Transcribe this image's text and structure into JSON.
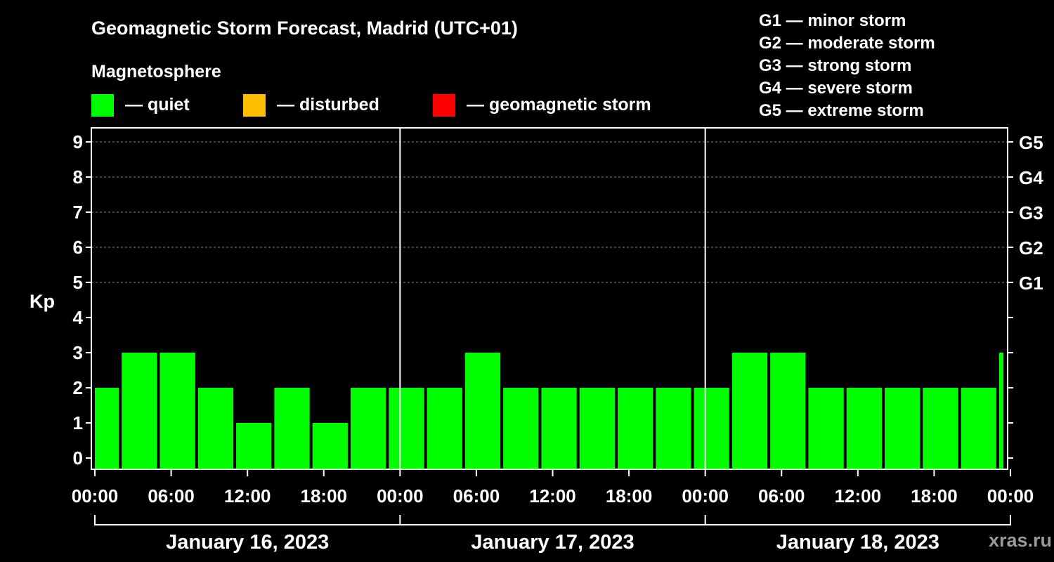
{
  "chart_data": {
    "type": "bar",
    "title": "Geomagnetic Storm Forecast, Madrid (UTC+01)",
    "ylabel": "Kp",
    "ylim": [
      0,
      9
    ],
    "y_ticks": [
      "0",
      "1",
      "2",
      "3",
      "4",
      "5",
      "6",
      "7",
      "8",
      "9"
    ],
    "right_axis_labels": [
      {
        "kp": 5,
        "label": "G1"
      },
      {
        "kp": 6,
        "label": "G2"
      },
      {
        "kp": 7,
        "label": "G3"
      },
      {
        "kp": 8,
        "label": "G4"
      },
      {
        "kp": 9,
        "label": "G5"
      }
    ],
    "x_tick_labels": [
      "00:00",
      "06:00",
      "12:00",
      "18:00",
      "00:00",
      "06:00",
      "12:00",
      "18:00",
      "00:00",
      "06:00",
      "12:00",
      "18:00",
      "00:00"
    ],
    "days": [
      "January 16, 2023",
      "January 17, 2023",
      "January 18, 2023"
    ],
    "interval_hours": 3,
    "period_start_offset_hours": -1,
    "values": [
      2,
      3,
      3,
      2,
      1,
      2,
      1,
      2,
      2,
      2,
      3,
      2,
      2,
      2,
      2,
      2,
      2,
      3,
      3,
      2,
      2,
      2,
      2,
      2,
      3
    ],
    "status_colors": {
      "quiet": "#00ff00",
      "disturbed": "#ffbf00",
      "storm": "#ff0000"
    }
  },
  "legend": {
    "section_title": "Magnetosphere",
    "items": [
      {
        "label": "— quiet",
        "color": "#00ff00"
      },
      {
        "label": "— disturbed",
        "color": "#ffbf00"
      },
      {
        "label": "— geomagnetic storm",
        "color": "#ff0000"
      }
    ]
  },
  "storm_scale": [
    "G1 — minor storm",
    "G2 — moderate storm",
    "G3 — strong storm",
    "G4 — severe storm",
    "G5 — extreme storm"
  ],
  "watermark": "xras.ru"
}
